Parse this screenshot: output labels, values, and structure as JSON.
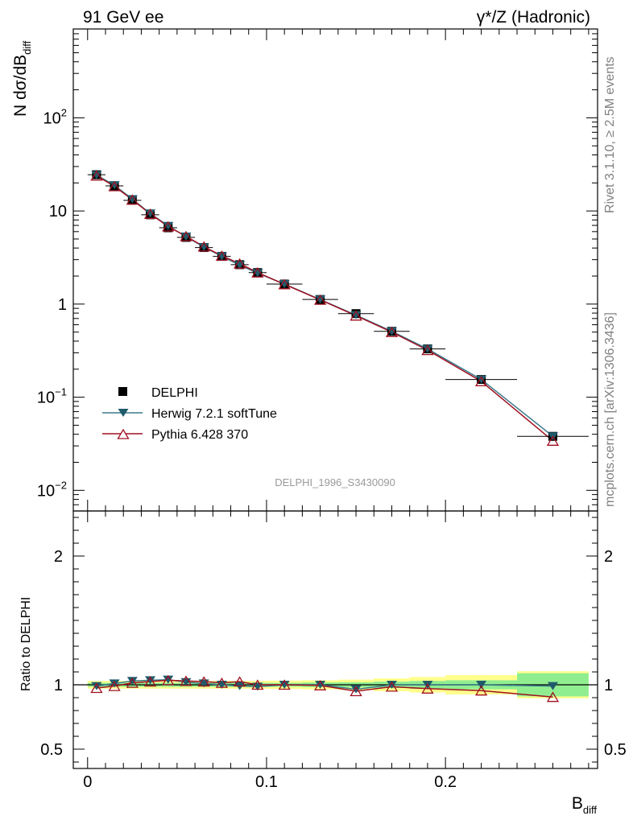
{
  "header": {
    "left_title": "91 GeV ee",
    "right_title": "γ*/Z (Hadronic)",
    "side_label_top": "Rivet 3.1.10, ≥ 2.5M events",
    "side_label_bottom": "mcplots.cern.ch [arXiv:1306.3436]",
    "watermark": "DELPHI_1996_S3430090"
  },
  "colors": {
    "data": "#000000",
    "herwig": "#1f5b6b",
    "herwig_line": "#3a7a8c",
    "pythia": "#a01020",
    "band_inner": "#90ee90",
    "band_outer": "#ffff8c"
  },
  "chart_data": [
    {
      "type": "scatter",
      "title": "",
      "xlabel": "B",
      "xlabel_sub": "diff",
      "ylabel": "N dσ/dB",
      "ylabel_sub": "diff",
      "yscale": "log",
      "xlim": [
        -0.008,
        0.285
      ],
      "ylim": [
        0.006,
        900
      ],
      "ytick_labels": [
        {
          "base": "10",
          "exp": "−2",
          "value": 0.01
        },
        {
          "base": "10",
          "exp": "−1",
          "value": 0.1
        },
        {
          "base": "1",
          "exp": "",
          "value": 1
        },
        {
          "base": "10",
          "exp": "",
          "value": 10
        },
        {
          "base": "10",
          "exp": "2",
          "value": 100
        }
      ],
      "legend": [
        {
          "label": "DELPHI",
          "marker": "square"
        },
        {
          "label": "Herwig 7.2.1 softTune",
          "marker": "triangle-down"
        },
        {
          "label": "Pythia 6.428 370",
          "marker": "triangle-up-open"
        }
      ],
      "legend_position": "bottom-left",
      "x": [
        0.005,
        0.015,
        0.025,
        0.035,
        0.045,
        0.055,
        0.065,
        0.075,
        0.085,
        0.095,
        0.11,
        0.13,
        0.15,
        0.17,
        0.19,
        0.22,
        0.26
      ],
      "x_bins": [
        [
          0.0,
          0.01
        ],
        [
          0.01,
          0.02
        ],
        [
          0.02,
          0.03
        ],
        [
          0.03,
          0.04
        ],
        [
          0.04,
          0.05
        ],
        [
          0.05,
          0.06
        ],
        [
          0.06,
          0.07
        ],
        [
          0.07,
          0.08
        ],
        [
          0.08,
          0.09
        ],
        [
          0.09,
          0.1
        ],
        [
          0.1,
          0.12
        ],
        [
          0.12,
          0.14
        ],
        [
          0.14,
          0.16
        ],
        [
          0.16,
          0.18
        ],
        [
          0.18,
          0.2
        ],
        [
          0.2,
          0.24
        ],
        [
          0.24,
          0.28
        ]
      ],
      "series": [
        {
          "name": "DELPHI",
          "values": [
            24.5,
            18.6,
            13.0,
            9.1,
            6.6,
            5.2,
            4.05,
            3.25,
            2.65,
            2.18,
            1.64,
            1.12,
            0.79,
            0.51,
            0.33,
            0.155,
            0.038
          ]
        },
        {
          "name": "Herwig 7.2.1 softTune",
          "values": [
            24.3,
            18.9,
            13.4,
            9.4,
            6.9,
            5.3,
            4.1,
            3.25,
            2.62,
            2.15,
            1.64,
            1.12,
            0.76,
            0.51,
            0.33,
            0.155,
            0.038
          ]
        },
        {
          "name": "Pythia 6.428 370",
          "values": [
            23.9,
            18.4,
            13.2,
            9.3,
            6.8,
            5.35,
            4.15,
            3.3,
            2.72,
            2.18,
            1.63,
            1.11,
            0.75,
            0.5,
            0.32,
            0.148,
            0.034
          ]
        }
      ]
    },
    {
      "type": "scatter",
      "title": "",
      "xlabel": "B",
      "xlabel_sub": "diff",
      "ylabel": "Ratio to DELPHI",
      "yscale": "linear",
      "xlim": [
        -0.008,
        0.285
      ],
      "ylim": [
        0.35,
        2.35
      ],
      "ytick_labels": [
        "0.5",
        "1",
        "2"
      ],
      "ytick_values": [
        0.5,
        1,
        2
      ],
      "xtick_labels": [
        "0",
        "0.1",
        "0.2"
      ],
      "xtick_values": [
        0,
        0.1,
        0.2
      ],
      "x": [
        0.005,
        0.015,
        0.025,
        0.035,
        0.045,
        0.055,
        0.065,
        0.075,
        0.085,
        0.095,
        0.11,
        0.13,
        0.15,
        0.17,
        0.19,
        0.22,
        0.26
      ],
      "band_inner": [
        0.015,
        0.015,
        0.015,
        0.015,
        0.015,
        0.015,
        0.015,
        0.015,
        0.015,
        0.015,
        0.015,
        0.018,
        0.02,
        0.025,
        0.03,
        0.035,
        0.09
      ],
      "band_outer": [
        0.03,
        0.03,
        0.03,
        0.03,
        0.03,
        0.03,
        0.03,
        0.03,
        0.03,
        0.03,
        0.032,
        0.035,
        0.04,
        0.05,
        0.06,
        0.075,
        0.105
      ],
      "series": [
        {
          "name": "Herwig 7.2.1 softTune",
          "values": [
            0.99,
            1.01,
            1.03,
            1.035,
            1.04,
            1.02,
            1.01,
            1.0,
            0.99,
            0.985,
            1.0,
            1.0,
            0.965,
            1.0,
            1.0,
            1.0,
            0.99
          ]
        },
        {
          "name": "Pythia 6.428 370",
          "values": [
            0.975,
            0.99,
            1.015,
            1.025,
            1.035,
            1.03,
            1.025,
            1.015,
            1.025,
            1.0,
            1.0,
            0.995,
            0.95,
            0.985,
            0.97,
            0.955,
            0.905
          ]
        }
      ]
    }
  ]
}
